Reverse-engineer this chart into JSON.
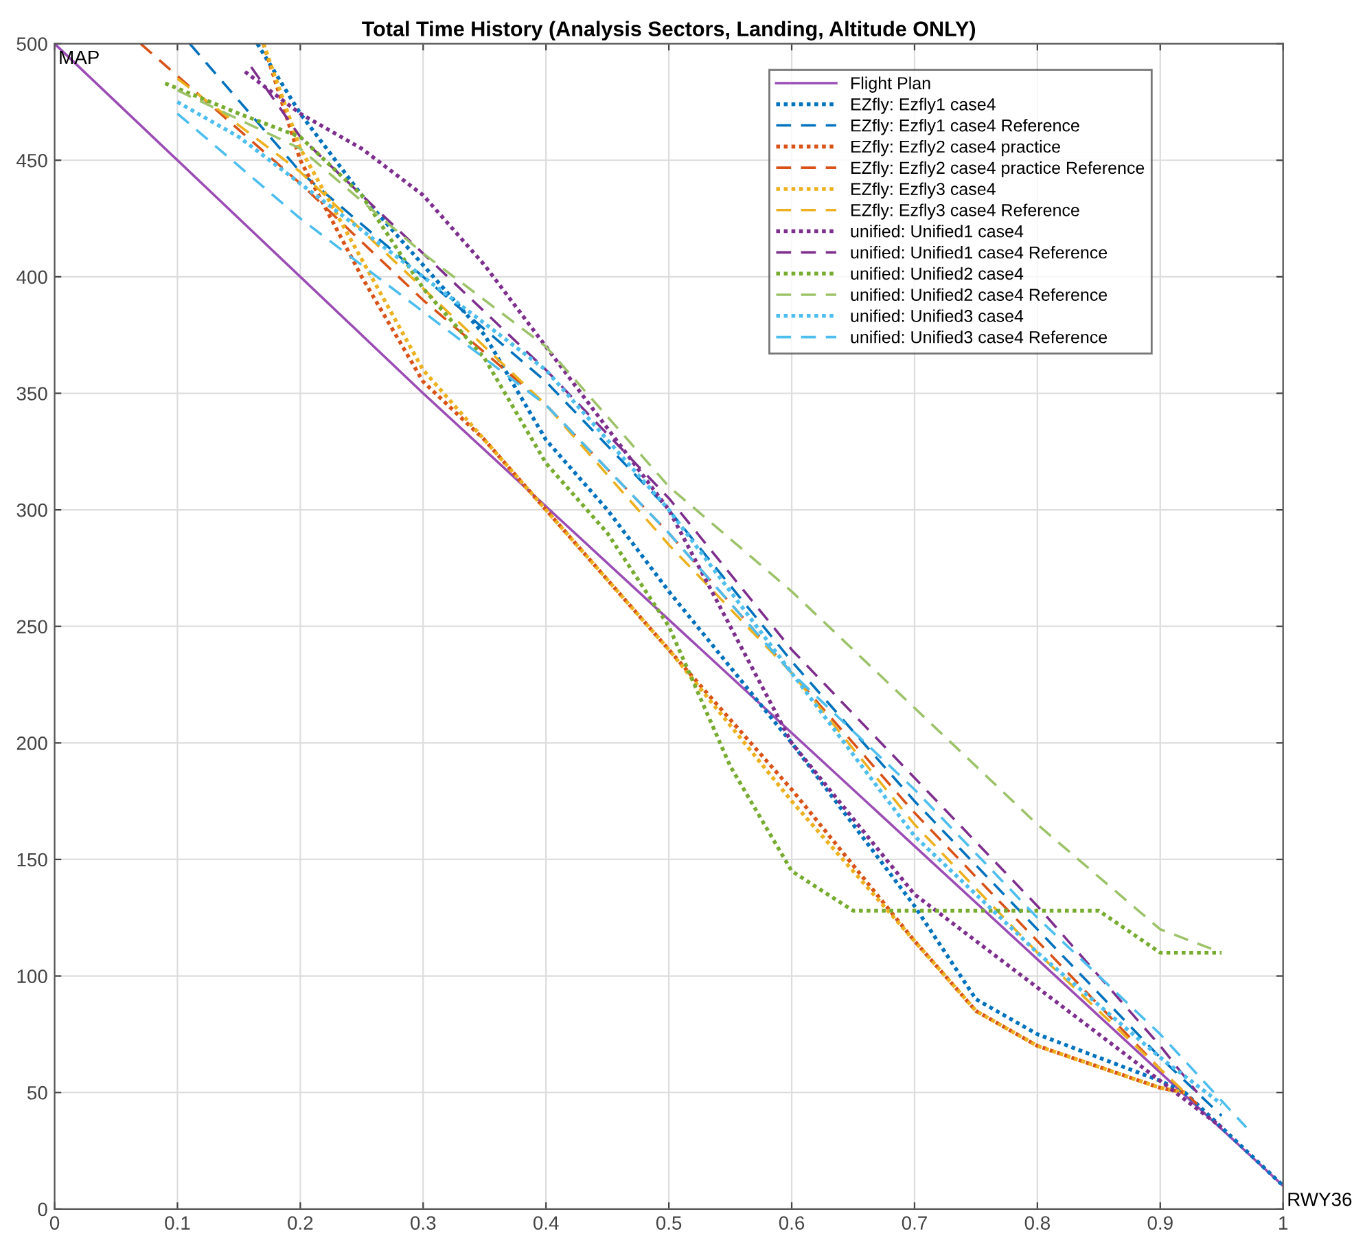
{
  "chart_data": {
    "type": "line",
    "title": "Total Time History (Analysis Sectors, Landing, Altitude ONLY)",
    "xlim": [
      0,
      1
    ],
    "ylim": [
      0,
      500
    ],
    "xticks": [
      0,
      0.1,
      0.2,
      0.3,
      0.4,
      0.5,
      0.6,
      0.7,
      0.8,
      0.9,
      1
    ],
    "yticks": [
      0,
      50,
      100,
      150,
      200,
      250,
      300,
      350,
      400,
      450,
      500
    ],
    "grid": true,
    "legend": "top right",
    "annotations": [
      {
        "text": "MAP",
        "x": 0,
        "y": 500
      },
      {
        "text": "RWY36",
        "x": 1,
        "y": 10
      }
    ],
    "series": [
      {
        "name": "Flight Plan",
        "color": "#9b4db5",
        "line_style": "solid",
        "x": [
          0,
          0.3,
          1
        ],
        "values": [
          500,
          350,
          10
        ]
      },
      {
        "name": "EZfly: Ezfly1 case4",
        "color": "#0072bd",
        "line_style": "dotted",
        "x": [
          0.165,
          0.2,
          0.25,
          0.3,
          0.35,
          0.4,
          0.45,
          0.5,
          0.6,
          0.7,
          0.75,
          0.8,
          0.85,
          0.9,
          0.92,
          0.95,
          1
        ],
        "values": [
          500,
          470,
          435,
          405,
          375,
          330,
          300,
          265,
          200,
          130,
          90,
          75,
          65,
          55,
          50,
          35,
          10
        ]
      },
      {
        "name": "EZfly: Ezfly1 case4 Reference",
        "color": "#0072bd",
        "line_style": "dashed",
        "x": [
          0.11,
          0.2,
          0.3,
          0.4,
          0.5,
          0.6,
          0.7,
          0.8,
          0.9,
          0.95
        ],
        "values": [
          500,
          445,
          400,
          355,
          300,
          235,
          175,
          120,
          65,
          40
        ]
      },
      {
        "name": "EZfly: Ezfly2 case4 practice",
        "color": "#d95319",
        "line_style": "dotted",
        "x": [
          0.17,
          0.2,
          0.25,
          0.3,
          0.35,
          0.4,
          0.5,
          0.6,
          0.7,
          0.75,
          0.8,
          0.9,
          0.92
        ],
        "values": [
          500,
          450,
          400,
          355,
          330,
          300,
          240,
          180,
          115,
          85,
          70,
          52,
          50
        ]
      },
      {
        "name": "EZfly: Ezfly2 case4 practice Reference",
        "color": "#d95319",
        "line_style": "dashed",
        "x": [
          0.07,
          0.2,
          0.3,
          0.4,
          0.5,
          0.6,
          0.7,
          0.8,
          0.9,
          0.93
        ],
        "values": [
          500,
          440,
          390,
          345,
          290,
          230,
          170,
          115,
          60,
          45
        ]
      },
      {
        "name": "EZfly: Ezfly3 case4",
        "color": "#edb120",
        "line_style": "dotted",
        "x": [
          0.17,
          0.2,
          0.3,
          0.4,
          0.5,
          0.6,
          0.7,
          0.75,
          0.8,
          0.9,
          0.92
        ],
        "values": [
          500,
          455,
          360,
          300,
          240,
          175,
          115,
          85,
          70,
          52,
          50
        ]
      },
      {
        "name": "EZfly: Ezfly3 case4 Reference",
        "color": "#edb120",
        "line_style": "dashed",
        "x": [
          0.1,
          0.2,
          0.3,
          0.4,
          0.5,
          0.6,
          0.7,
          0.8,
          0.9,
          0.92
        ],
        "values": [
          485,
          445,
          395,
          345,
          285,
          230,
          165,
          110,
          60,
          50
        ]
      },
      {
        "name": "unified: Unified1 case4",
        "color": "#7e2f8e",
        "line_style": "dotted",
        "x": [
          0.155,
          0.2,
          0.25,
          0.3,
          0.35,
          0.4,
          0.45,
          0.5,
          0.55,
          0.6,
          0.7,
          0.8,
          0.9,
          0.95
        ],
        "values": [
          488,
          470,
          455,
          435,
          405,
          370,
          335,
          300,
          250,
          200,
          135,
          95,
          55,
          35
        ]
      },
      {
        "name": "unified: Unified1 case4 Reference",
        "color": "#7e2f8e",
        "line_style": "dashed",
        "x": [
          0.16,
          0.2,
          0.3,
          0.4,
          0.5,
          0.6,
          0.7,
          0.8,
          0.9,
          0.93
        ],
        "values": [
          490,
          460,
          410,
          360,
          305,
          240,
          185,
          130,
          70,
          50
        ]
      },
      {
        "name": "unified: Unified2 case4",
        "color": "#77ac30",
        "line_style": "dotted",
        "x": [
          0.09,
          0.15,
          0.2,
          0.25,
          0.3,
          0.35,
          0.4,
          0.45,
          0.5,
          0.55,
          0.6,
          0.65,
          0.7,
          0.85,
          0.9,
          0.95
        ],
        "values": [
          483,
          470,
          460,
          435,
          395,
          365,
          320,
          290,
          250,
          190,
          145,
          128,
          128,
          128,
          110,
          110
        ]
      },
      {
        "name": "unified: Unified2 case4 Reference",
        "color": "#9dc36a",
        "line_style": "dashed",
        "x": [
          0.1,
          0.2,
          0.3,
          0.4,
          0.5,
          0.6,
          0.7,
          0.8,
          0.9,
          0.95
        ],
        "values": [
          480,
          455,
          410,
          370,
          310,
          265,
          215,
          165,
          120,
          110
        ]
      },
      {
        "name": "unified: Unified3 case4",
        "color": "#4dbeee",
        "line_style": "dotted",
        "x": [
          0.1,
          0.15,
          0.2,
          0.3,
          0.4,
          0.5,
          0.6,
          0.7,
          0.8,
          0.9,
          0.95
        ],
        "values": [
          475,
          460,
          440,
          400,
          360,
          300,
          230,
          160,
          110,
          65,
          45
        ]
      },
      {
        "name": "unified: Unified3 case4 Reference",
        "color": "#4dbeee",
        "line_style": "dashed",
        "x": [
          0.1,
          0.2,
          0.3,
          0.4,
          0.5,
          0.6,
          0.7,
          0.8,
          0.9,
          0.97
        ],
        "values": [
          470,
          425,
          385,
          345,
          290,
          230,
          180,
          125,
          75,
          35
        ]
      }
    ]
  }
}
